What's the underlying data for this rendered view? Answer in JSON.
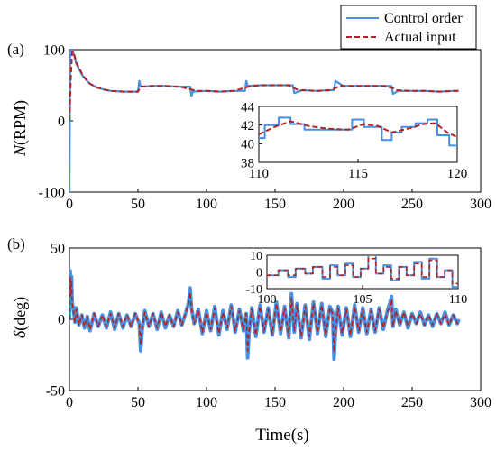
{
  "legend": {
    "entries": [
      {
        "label": "Control order",
        "color": "#4a90e2",
        "style": "solid"
      },
      {
        "label": "Actual input",
        "color": "#b22222",
        "style": "dashed"
      }
    ]
  },
  "chart_data": [
    {
      "type": "line",
      "panel_label": "(a)",
      "ylabel_var": "N",
      "ylabel_unit": "(RPM)",
      "xlim": [
        0,
        300
      ],
      "ylim": [
        -100,
        100
      ],
      "xticks": [
        0,
        50,
        100,
        150,
        200,
        250,
        300
      ],
      "yticks": [
        -100,
        0,
        100
      ],
      "grid": false,
      "series": [
        {
          "name": "Control order",
          "color": "#4a90e2",
          "x": [
            0,
            0.5,
            1,
            2,
            3,
            5,
            10,
            15,
            20,
            25,
            30,
            40,
            50,
            51,
            52,
            60,
            70,
            80,
            88,
            89,
            90,
            100,
            110,
            120,
            128,
            129,
            130,
            140,
            150,
            160,
            163,
            164,
            170,
            180,
            190,
            193,
            194,
            200,
            210,
            220,
            230,
            235,
            236,
            240,
            250,
            260,
            270,
            280,
            284
          ],
          "y": [
            -100,
            100,
            100,
            100,
            95,
            80,
            62,
            52,
            47,
            44,
            42,
            41,
            41,
            56,
            48,
            49,
            49,
            48,
            48,
            35,
            41,
            42,
            41,
            42,
            42,
            56,
            49,
            50,
            50,
            50,
            50,
            39,
            43,
            42,
            43,
            43,
            56,
            49,
            49,
            49,
            49,
            49,
            38,
            42,
            42,
            42,
            41,
            42,
            42
          ]
        },
        {
          "name": "Actual input",
          "color": "#b22222",
          "x": [
            0,
            1,
            2,
            3,
            5,
            10,
            15,
            20,
            25,
            30,
            40,
            50,
            52,
            60,
            70,
            80,
            89,
            92,
            100,
            110,
            120,
            129,
            132,
            140,
            150,
            160,
            164,
            167,
            170,
            180,
            190,
            194,
            197,
            200,
            210,
            220,
            230,
            236,
            239,
            250,
            260,
            270,
            280,
            284
          ],
          "y": [
            0,
            60,
            97,
            97,
            82,
            63,
            52,
            47,
            44,
            42,
            41,
            41,
            48,
            49,
            49,
            48,
            44,
            42,
            42,
            41,
            42,
            47,
            49,
            50,
            50,
            50,
            46,
            43,
            43,
            42,
            43,
            46,
            49,
            49,
            49,
            49,
            49,
            46,
            43,
            42,
            42,
            41,
            42,
            42
          ]
        }
      ],
      "inset": {
        "xlim": [
          110,
          120
        ],
        "ylim": [
          38,
          44
        ],
        "xticks": [
          110,
          115,
          120
        ],
        "yticks": [
          38,
          40,
          42,
          44
        ],
        "series": [
          {
            "name": "Control order",
            "color": "#4a90e2",
            "x": [
              110,
              110.3,
              110.3,
              111,
              111,
              111.6,
              111.6,
              112.3,
              112.3,
              114.7,
              114.7,
              115.3,
              115.3,
              116.2,
              116.2,
              116.7,
              116.7,
              117.2,
              117.2,
              117.9,
              117.9,
              118.5,
              118.5,
              119,
              119,
              119.6,
              119.6,
              120
            ],
            "y": [
              40.6,
              40.6,
              42,
              42,
              42.8,
              42.8,
              42.1,
              42.1,
              41.5,
              41.5,
              42.6,
              42.6,
              41.8,
              41.8,
              40.4,
              40.4,
              41.2,
              41.2,
              41.8,
              41.8,
              42.2,
              42.2,
              42.6,
              42.6,
              40.9,
              40.9,
              39.8,
              39.8
            ]
          },
          {
            "name": "Actual input",
            "color": "#b22222",
            "x": [
              110,
              110.8,
              111.6,
              112.5,
              113.5,
              114.5,
              115.3,
              116,
              116.7,
              117.5,
              118.3,
              118.9,
              119.5,
              120
            ],
            "y": [
              41,
              41.8,
              42.4,
              41.9,
              41.6,
              41.5,
              42.1,
              41.9,
              41.2,
              41.6,
              42.1,
              42.2,
              41.2,
              40.7
            ]
          }
        ]
      }
    },
    {
      "type": "line",
      "panel_label": "(b)",
      "ylabel_var": "δ",
      "ylabel_unit": "(deg)",
      "xlabel": "Time",
      "xlabel_unit": "(s)",
      "xlim": [
        0,
        300
      ],
      "ylim": [
        -50,
        50
      ],
      "xticks": [
        0,
        50,
        100,
        150,
        200,
        250,
        300
      ],
      "yticks": [
        -50,
        0,
        50
      ],
      "grid": false,
      "series": [
        {
          "name": "Control order",
          "color": "#4a90e2",
          "x": [
            0,
            0.5,
            1,
            1.5,
            2,
            3,
            4,
            5,
            7,
            9,
            11,
            13,
            15,
            18,
            21,
            24,
            27,
            30,
            33,
            36,
            39,
            42,
            45,
            48,
            51,
            52,
            53,
            55,
            58,
            61,
            64,
            67,
            70,
            73,
            76,
            79,
            82,
            85,
            87,
            88,
            89,
            91,
            94,
            97,
            100,
            103,
            106,
            109,
            112,
            115,
            118,
            121,
            124,
            127,
            129,
            130,
            131,
            133,
            136,
            139,
            142,
            145,
            148,
            151,
            154,
            157,
            160,
            162,
            164,
            166,
            169,
            172,
            175,
            178,
            181,
            184,
            187,
            190,
            192,
            193,
            194,
            196,
            199,
            202,
            205,
            208,
            211,
            214,
            217,
            220,
            223,
            226,
            229,
            232,
            234,
            235,
            236,
            238,
            241,
            244,
            247,
            250,
            253,
            256,
            259,
            262,
            265,
            268,
            271,
            274,
            277,
            280,
            283,
            284
          ],
          "y": [
            0,
            34,
            18,
            30,
            12,
            6,
            -2,
            8,
            -4,
            3,
            -6,
            2,
            -8,
            4,
            -5,
            3,
            -6,
            5,
            -7,
            4,
            -6,
            3,
            -5,
            4,
            -3,
            -22,
            -8,
            6,
            -5,
            4,
            -7,
            5,
            -6,
            3,
            -5,
            6,
            -4,
            5,
            12,
            22,
            8,
            -3,
            7,
            -10,
            6,
            -8,
            9,
            -11,
            6,
            -7,
            10,
            -9,
            7,
            -8,
            4,
            -27,
            -10,
            8,
            -12,
            10,
            -9,
            8,
            -11,
            12,
            -10,
            9,
            -13,
            18,
            -9,
            11,
            -13,
            10,
            -14,
            12,
            -10,
            11,
            -12,
            9,
            5,
            -28,
            -10,
            9,
            -11,
            8,
            -12,
            10,
            -9,
            8,
            -10,
            7,
            -9,
            8,
            -7,
            6,
            12,
            16,
            -5,
            7,
            -4,
            5,
            -6,
            4,
            -3,
            5,
            -4,
            3,
            -5,
            4,
            -3,
            5,
            -4,
            3,
            -3,
            0
          ]
        },
        {
          "name": "Actual input",
          "color": "#b22222",
          "x": [
            0,
            0.5,
            1,
            1.5,
            2,
            3,
            4,
            5,
            7,
            9,
            11,
            13,
            15,
            18,
            21,
            24,
            27,
            30,
            33,
            36,
            39,
            42,
            45,
            48,
            51,
            52,
            53,
            55,
            58,
            61,
            64,
            67,
            70,
            73,
            76,
            79,
            82,
            85,
            87,
            88,
            89,
            91,
            94,
            97,
            100,
            103,
            106,
            109,
            112,
            115,
            118,
            121,
            124,
            127,
            129,
            130,
            131,
            133,
            136,
            139,
            142,
            145,
            148,
            151,
            154,
            157,
            160,
            162,
            164,
            166,
            169,
            172,
            175,
            178,
            181,
            184,
            187,
            190,
            192,
            193,
            194,
            196,
            199,
            202,
            205,
            208,
            211,
            214,
            217,
            220,
            223,
            226,
            229,
            232,
            234,
            235,
            236,
            238,
            241,
            244,
            247,
            250,
            253,
            256,
            259,
            262,
            265,
            268,
            271,
            274,
            277,
            280,
            283,
            284
          ],
          "y": [
            0,
            30,
            16,
            27,
            11,
            5,
            -2,
            7,
            -4,
            3,
            -5,
            2,
            -7,
            4,
            -5,
            3,
            -5,
            4,
            -6,
            4,
            -5,
            3,
            -5,
            4,
            -3,
            -18,
            -7,
            5,
            -5,
            4,
            -6,
            5,
            -5,
            3,
            -5,
            5,
            -4,
            5,
            11,
            19,
            7,
            -3,
            6,
            -9,
            5,
            -7,
            8,
            -10,
            5,
            -6,
            9,
            -8,
            6,
            -7,
            4,
            -22,
            -9,
            7,
            -11,
            9,
            -8,
            7,
            -10,
            11,
            -9,
            8,
            -12,
            15,
            -8,
            10,
            -12,
            9,
            -12,
            11,
            -9,
            10,
            -11,
            8,
            4,
            -23,
            -9,
            8,
            -10,
            7,
            -11,
            9,
            -8,
            7,
            -9,
            6,
            -8,
            7,
            -6,
            5,
            10,
            14,
            -5,
            6,
            -4,
            5,
            -5,
            4,
            -3,
            4,
            -4,
            3,
            -4,
            4,
            -3,
            4,
            -4,
            3,
            -3,
            0
          ]
        }
      ],
      "inset": {
        "xlim": [
          100,
          110
        ],
        "ylim": [
          -10,
          10
        ],
        "xticks": [
          100,
          105,
          110
        ],
        "yticks": [
          -10,
          0,
          10
        ],
        "series": [
          {
            "name": "Control order",
            "color": "#4a90e2",
            "x": [
              100,
              100.6,
              100.6,
              101.1,
              101.1,
              101.5,
              101.5,
              102.0,
              102.0,
              102.4,
              102.4,
              102.9,
              102.9,
              103.3,
              103.3,
              103.7,
              103.7,
              104.1,
              104.1,
              104.5,
              104.5,
              104.9,
              104.9,
              105.3,
              105.3,
              105.7,
              105.7,
              106.1,
              106.1,
              106.5,
              106.5,
              106.9,
              106.9,
              107.3,
              107.3,
              107.7,
              107.7,
              108.1,
              108.1,
              108.5,
              108.5,
              108.9,
              108.9,
              109.3,
              109.3,
              109.7,
              109.7,
              110
            ],
            "y": [
              -2,
              -2,
              1,
              1,
              -3,
              -3,
              2,
              2,
              -1,
              -1,
              3,
              3,
              -4,
              -4,
              4,
              4,
              -2,
              -2,
              5,
              5,
              -3,
              -3,
              2,
              2,
              10,
              10,
              -1,
              -1,
              4,
              4,
              -5,
              -5,
              3,
              3,
              -2,
              -2,
              6,
              6,
              -4,
              -4,
              8,
              8,
              -3,
              -3,
              1,
              1,
              -9,
              -9
            ]
          },
          {
            "name": "Actual input",
            "color": "#b22222",
            "x": [
              100,
              100.6,
              100.6,
              101.1,
              101.1,
              101.5,
              101.5,
              102.0,
              102.0,
              102.4,
              102.4,
              102.9,
              102.9,
              103.3,
              103.3,
              103.7,
              103.7,
              104.1,
              104.1,
              104.5,
              104.5,
              104.9,
              104.9,
              105.3,
              105.3,
              105.7,
              105.7,
              106.1,
              106.1,
              106.5,
              106.5,
              106.9,
              106.9,
              107.3,
              107.3,
              107.7,
              107.7,
              108.1,
              108.1,
              108.5,
              108.5,
              108.9,
              108.9,
              109.3,
              109.3,
              109.7,
              109.7,
              110
            ],
            "y": [
              -2,
              -2,
              1,
              1,
              -2,
              -2,
              2,
              2,
              -1,
              -1,
              3,
              3,
              -3,
              -3,
              3,
              3,
              -2,
              -2,
              4,
              4,
              -3,
              -3,
              2,
              2,
              8,
              8,
              -1,
              -1,
              3,
              3,
              -4,
              -4,
              3,
              3,
              -2,
              -2,
              5,
              5,
              -3,
              -3,
              7,
              7,
              -3,
              -3,
              1,
              1,
              -7,
              -7
            ]
          }
        ]
      }
    }
  ]
}
